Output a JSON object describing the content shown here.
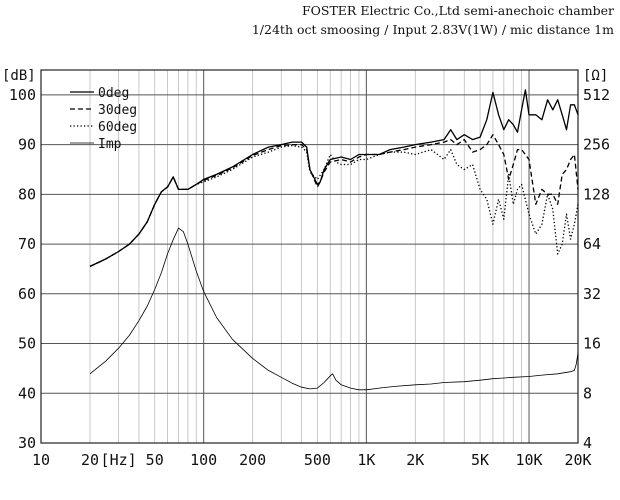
{
  "header": {
    "line1": "FOSTER Electric Co.,Ltd  semi-anechoic chamber",
    "line2": "1/24th oct smoosing / Input 2.83V(1W) / mic distance 1m"
  },
  "chart_data": {
    "type": "line",
    "title": "",
    "xlabel": "[Hz]",
    "ylabel_left": "[dB]",
    "ylabel_right": "[Ω]",
    "x_scale": "log",
    "xlim": [
      10,
      20000
    ],
    "ylim_left": [
      30,
      105
    ],
    "ylim_right": [
      4,
      724
    ],
    "right_scale": "log2",
    "grid": true,
    "legend_position": "top-left",
    "x_ticks": [
      {
        "v": 10,
        "label": "10"
      },
      {
        "v": 20,
        "label": "20"
      },
      {
        "v": 30,
        "label": "[Hz]"
      },
      {
        "v": 50,
        "label": "50"
      },
      {
        "v": 100,
        "label": "100"
      },
      {
        "v": 200,
        "label": "200"
      },
      {
        "v": 500,
        "label": "500"
      },
      {
        "v": 1000,
        "label": "1K"
      },
      {
        "v": 2000,
        "label": "2K"
      },
      {
        "v": 5000,
        "label": "5K"
      },
      {
        "v": 10000,
        "label": "10K"
      },
      {
        "v": 20000,
        "label": "20K"
      }
    ],
    "y_ticks_left": [
      30,
      40,
      50,
      60,
      70,
      80,
      90,
      100
    ],
    "y_ticks_right": [
      4,
      8,
      16,
      32,
      64,
      128,
      256,
      512
    ],
    "series": [
      {
        "name": "0deg",
        "axis": "left",
        "dash": "solid",
        "points": [
          [
            20,
            65.5
          ],
          [
            25,
            67
          ],
          [
            30,
            68.5
          ],
          [
            35,
            70
          ],
          [
            40,
            72
          ],
          [
            45,
            74.5
          ],
          [
            50,
            78
          ],
          [
            55,
            80.5
          ],
          [
            60,
            81.5
          ],
          [
            65,
            83.5
          ],
          [
            70,
            81
          ],
          [
            80,
            81
          ],
          [
            90,
            82
          ],
          [
            100,
            83
          ],
          [
            120,
            84
          ],
          [
            150,
            85.5
          ],
          [
            200,
            88
          ],
          [
            250,
            89.5
          ],
          [
            300,
            90
          ],
          [
            350,
            90.5
          ],
          [
            400,
            90.5
          ],
          [
            430,
            89.5
          ],
          [
            450,
            85
          ],
          [
            500,
            82
          ],
          [
            520,
            82.5
          ],
          [
            550,
            85
          ],
          [
            600,
            87
          ],
          [
            700,
            87.5
          ],
          [
            800,
            87
          ],
          [
            900,
            88
          ],
          [
            1000,
            88
          ],
          [
            1200,
            88
          ],
          [
            1400,
            89
          ],
          [
            1700,
            89.5
          ],
          [
            2000,
            90
          ],
          [
            2500,
            90.5
          ],
          [
            3000,
            91
          ],
          [
            3300,
            93
          ],
          [
            3600,
            91
          ],
          [
            4000,
            92
          ],
          [
            4500,
            91
          ],
          [
            5000,
            91.5
          ],
          [
            5500,
            95
          ],
          [
            6000,
            100.5
          ],
          [
            6500,
            96
          ],
          [
            7000,
            93
          ],
          [
            7500,
            95
          ],
          [
            8000,
            94
          ],
          [
            8500,
            92.5
          ],
          [
            9000,
            97
          ],
          [
            9500,
            101
          ],
          [
            10000,
            96
          ],
          [
            11000,
            96
          ],
          [
            12000,
            95
          ],
          [
            13000,
            99
          ],
          [
            14000,
            97
          ],
          [
            15000,
            99
          ],
          [
            16000,
            96
          ],
          [
            17000,
            93
          ],
          [
            18000,
            98
          ],
          [
            19000,
            98
          ],
          [
            20000,
            96
          ]
        ]
      },
      {
        "name": "30deg",
        "axis": "left",
        "dash": "dashed",
        "points": [
          [
            20,
            65.5
          ],
          [
            25,
            67
          ],
          [
            30,
            68.5
          ],
          [
            35,
            70
          ],
          [
            40,
            72
          ],
          [
            45,
            74.5
          ],
          [
            50,
            78
          ],
          [
            55,
            80.5
          ],
          [
            60,
            81.5
          ],
          [
            65,
            83.5
          ],
          [
            70,
            81
          ],
          [
            80,
            81
          ],
          [
            90,
            82
          ],
          [
            100,
            82.8
          ],
          [
            120,
            83.8
          ],
          [
            150,
            85.3
          ],
          [
            200,
            87.8
          ],
          [
            250,
            89
          ],
          [
            300,
            89.8
          ],
          [
            350,
            90
          ],
          [
            400,
            90
          ],
          [
            430,
            89
          ],
          [
            450,
            85
          ],
          [
            500,
            81.5
          ],
          [
            520,
            82.5
          ],
          [
            550,
            84.5
          ],
          [
            600,
            86.5
          ],
          [
            700,
            87
          ],
          [
            800,
            86.5
          ],
          [
            900,
            87.5
          ],
          [
            1000,
            88
          ],
          [
            1200,
            88
          ],
          [
            1400,
            88.5
          ],
          [
            1700,
            89
          ],
          [
            2000,
            89.5
          ],
          [
            2500,
            90
          ],
          [
            3000,
            90.5
          ],
          [
            3300,
            91
          ],
          [
            3600,
            90
          ],
          [
            4000,
            91
          ],
          [
            4500,
            88.5
          ],
          [
            5000,
            89
          ],
          [
            5500,
            90
          ],
          [
            6000,
            92
          ],
          [
            6500,
            90
          ],
          [
            7000,
            88
          ],
          [
            7500,
            83
          ],
          [
            8000,
            86
          ],
          [
            8500,
            89
          ],
          [
            9000,
            89
          ],
          [
            10000,
            87
          ],
          [
            11000,
            78
          ],
          [
            12000,
            81
          ],
          [
            13000,
            80
          ],
          [
            14000,
            80
          ],
          [
            15000,
            78
          ],
          [
            16000,
            84
          ],
          [
            17000,
            85
          ],
          [
            18000,
            87
          ],
          [
            19000,
            88
          ],
          [
            20000,
            81
          ]
        ]
      },
      {
        "name": "60deg",
        "axis": "left",
        "dash": "dotted",
        "points": [
          [
            20,
            65.5
          ],
          [
            25,
            67
          ],
          [
            30,
            68.5
          ],
          [
            35,
            70
          ],
          [
            40,
            72
          ],
          [
            45,
            74.5
          ],
          [
            50,
            78
          ],
          [
            55,
            80.5
          ],
          [
            60,
            81.5
          ],
          [
            65,
            83.5
          ],
          [
            70,
            81
          ],
          [
            80,
            81
          ],
          [
            90,
            82
          ],
          [
            100,
            82.5
          ],
          [
            120,
            83.5
          ],
          [
            150,
            85
          ],
          [
            200,
            87.5
          ],
          [
            250,
            88.5
          ],
          [
            300,
            89.5
          ],
          [
            350,
            89.8
          ],
          [
            400,
            89.5
          ],
          [
            430,
            88.5
          ],
          [
            450,
            84.5
          ],
          [
            500,
            83
          ],
          [
            550,
            85
          ],
          [
            600,
            88
          ],
          [
            650,
            86.5
          ],
          [
            700,
            86
          ],
          [
            800,
            86
          ],
          [
            900,
            87
          ],
          [
            1000,
            87
          ],
          [
            1200,
            88
          ],
          [
            1400,
            88.5
          ],
          [
            1700,
            88.5
          ],
          [
            2000,
            88
          ],
          [
            2500,
            89
          ],
          [
            3000,
            87
          ],
          [
            3300,
            89
          ],
          [
            3600,
            86
          ],
          [
            4000,
            85
          ],
          [
            4500,
            86
          ],
          [
            5000,
            81
          ],
          [
            5500,
            79
          ],
          [
            6000,
            74
          ],
          [
            6500,
            79
          ],
          [
            7000,
            75
          ],
          [
            7500,
            84
          ],
          [
            8000,
            78
          ],
          [
            8500,
            81
          ],
          [
            9000,
            82
          ],
          [
            10000,
            76
          ],
          [
            11000,
            72
          ],
          [
            12000,
            74
          ],
          [
            13000,
            80
          ],
          [
            14000,
            77
          ],
          [
            15000,
            68
          ],
          [
            16000,
            70
          ],
          [
            17000,
            76
          ],
          [
            18000,
            71
          ],
          [
            19000,
            74
          ],
          [
            20000,
            78
          ]
        ]
      },
      {
        "name": "Imp",
        "axis": "right",
        "dash": "solid",
        "thin": true,
        "points": [
          [
            20,
            10.5
          ],
          [
            25,
            12.5
          ],
          [
            30,
            15
          ],
          [
            35,
            18
          ],
          [
            40,
            22
          ],
          [
            45,
            27
          ],
          [
            50,
            34
          ],
          [
            55,
            43
          ],
          [
            60,
            56
          ],
          [
            65,
            68
          ],
          [
            70,
            80
          ],
          [
            75,
            76
          ],
          [
            80,
            64
          ],
          [
            90,
            44
          ],
          [
            100,
            33
          ],
          [
            120,
            23
          ],
          [
            150,
            17
          ],
          [
            200,
            13
          ],
          [
            250,
            11
          ],
          [
            300,
            10
          ],
          [
            350,
            9.2
          ],
          [
            400,
            8.7
          ],
          [
            450,
            8.5
          ],
          [
            500,
            8.6
          ],
          [
            550,
            9.3
          ],
          [
            600,
            10.2
          ],
          [
            620,
            10.5
          ],
          [
            650,
            9.6
          ],
          [
            700,
            9
          ],
          [
            800,
            8.6
          ],
          [
            900,
            8.4
          ],
          [
            1000,
            8.4
          ],
          [
            1200,
            8.6
          ],
          [
            1500,
            8.8
          ],
          [
            2000,
            9
          ],
          [
            2500,
            9.1
          ],
          [
            3000,
            9.3
          ],
          [
            4000,
            9.4
          ],
          [
            5000,
            9.6
          ],
          [
            6000,
            9.8
          ],
          [
            7000,
            9.9
          ],
          [
            8000,
            10
          ],
          [
            10000,
            10.1
          ],
          [
            12000,
            10.3
          ],
          [
            15000,
            10.5
          ],
          [
            18000,
            10.8
          ],
          [
            19000,
            11
          ],
          [
            19500,
            12
          ],
          [
            20000,
            14
          ]
        ]
      }
    ]
  }
}
